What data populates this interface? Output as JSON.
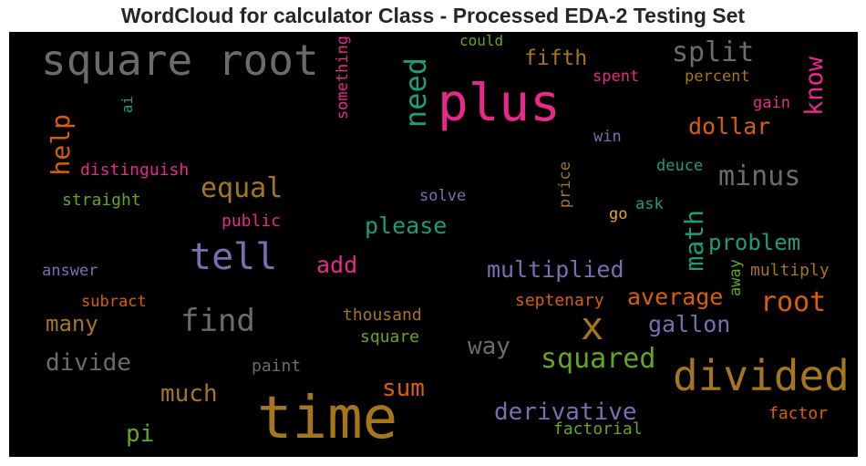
{
  "chart_data": {
    "type": "wordcloud",
    "title": "WordCloud for calculator Class - Processed EDA-2 Testing Set",
    "background": "#000000",
    "palette": {
      "gray": "#6b6b6b",
      "green": "#1b9e77",
      "olive": "#66a61e",
      "magenta": "#e7298a",
      "orange": "#d95f02",
      "purple": "#7570b3",
      "gold": "#a6761d",
      "yellow": "#e6ab02"
    },
    "words": [
      {
        "text": "square root",
        "color": "#6b6b6b",
        "orientation": "horizontal"
      },
      {
        "text": "plus",
        "color": "#e7298a",
        "orientation": "horizontal"
      },
      {
        "text": "need",
        "color": "#1b9e77",
        "orientation": "vertical"
      },
      {
        "text": "something",
        "color": "#e7298a",
        "orientation": "vertical"
      },
      {
        "text": "could",
        "color": "#66a61e",
        "orientation": "horizontal"
      },
      {
        "text": "fifth",
        "color": "#a6761d",
        "orientation": "horizontal"
      },
      {
        "text": "split",
        "color": "#6b6b6b",
        "orientation": "horizontal"
      },
      {
        "text": "know",
        "color": "#e7298a",
        "orientation": "vertical"
      },
      {
        "text": "spent",
        "color": "#e7298a",
        "orientation": "horizontal"
      },
      {
        "text": "percent",
        "color": "#a6761d",
        "orientation": "horizontal"
      },
      {
        "text": "gain",
        "color": "#e7298a",
        "orientation": "horizontal"
      },
      {
        "text": "ai",
        "color": "#1b9e77",
        "orientation": "vertical"
      },
      {
        "text": "help",
        "color": "#d95f02",
        "orientation": "vertical"
      },
      {
        "text": "dollar",
        "color": "#d95f02",
        "orientation": "horizontal"
      },
      {
        "text": "win",
        "color": "#7570b3",
        "orientation": "horizontal"
      },
      {
        "text": "distinguish",
        "color": "#e7298a",
        "orientation": "horizontal"
      },
      {
        "text": "deuce",
        "color": "#1b9e77",
        "orientation": "horizontal"
      },
      {
        "text": "minus",
        "color": "#6b6b6b",
        "orientation": "horizontal"
      },
      {
        "text": "price",
        "color": "#a6761d",
        "orientation": "vertical"
      },
      {
        "text": "equal",
        "color": "#a6761d",
        "orientation": "horizontal"
      },
      {
        "text": "straight",
        "color": "#66a61e",
        "orientation": "horizontal"
      },
      {
        "text": "solve",
        "color": "#7570b3",
        "orientation": "horizontal"
      },
      {
        "text": "ask",
        "color": "#1b9e77",
        "orientation": "horizontal"
      },
      {
        "text": "go",
        "color": "#e6ab02",
        "orientation": "horizontal"
      },
      {
        "text": "public",
        "color": "#e7298a",
        "orientation": "horizontal"
      },
      {
        "text": "please",
        "color": "#1b9e77",
        "orientation": "horizontal"
      },
      {
        "text": "math",
        "color": "#1b9e77",
        "orientation": "vertical"
      },
      {
        "text": "tell",
        "color": "#7570b3",
        "orientation": "horizontal"
      },
      {
        "text": "problem",
        "color": "#1b9e77",
        "orientation": "horizontal"
      },
      {
        "text": "add",
        "color": "#e7298a",
        "orientation": "horizontal"
      },
      {
        "text": "answer",
        "color": "#7570b3",
        "orientation": "horizontal"
      },
      {
        "text": "multiplied",
        "color": "#7570b3",
        "orientation": "horizontal"
      },
      {
        "text": "away",
        "color": "#66a61e",
        "orientation": "vertical"
      },
      {
        "text": "multiply",
        "color": "#a6761d",
        "orientation": "horizontal"
      },
      {
        "text": "subract",
        "color": "#d95f02",
        "orientation": "horizontal"
      },
      {
        "text": "average",
        "color": "#d95f02",
        "orientation": "horizontal"
      },
      {
        "text": "septenary",
        "color": "#d95f02",
        "orientation": "horizontal"
      },
      {
        "text": "root",
        "color": "#d95f02",
        "orientation": "horizontal"
      },
      {
        "text": "find",
        "color": "#6b6b6b",
        "orientation": "horizontal"
      },
      {
        "text": "thousand",
        "color": "#a6761d",
        "orientation": "horizontal"
      },
      {
        "text": "x",
        "color": "#a6761d",
        "orientation": "horizontal"
      },
      {
        "text": "many",
        "color": "#a6761d",
        "orientation": "horizontal"
      },
      {
        "text": "gallon",
        "color": "#7570b3",
        "orientation": "horizontal"
      },
      {
        "text": "square",
        "color": "#66a61e",
        "orientation": "horizontal"
      },
      {
        "text": "way",
        "color": "#6b6b6b",
        "orientation": "horizontal"
      },
      {
        "text": "divide",
        "color": "#6b6b6b",
        "orientation": "horizontal"
      },
      {
        "text": "squared",
        "color": "#66a61e",
        "orientation": "horizontal"
      },
      {
        "text": "paint",
        "color": "#6b6b6b",
        "orientation": "horizontal"
      },
      {
        "text": "divided",
        "color": "#a6761d",
        "orientation": "horizontal"
      },
      {
        "text": "much",
        "color": "#a6761d",
        "orientation": "horizontal"
      },
      {
        "text": "sum",
        "color": "#d95f02",
        "orientation": "horizontal"
      },
      {
        "text": "time",
        "color": "#a6761d",
        "orientation": "horizontal"
      },
      {
        "text": "derivative",
        "color": "#7570b3",
        "orientation": "horizontal"
      },
      {
        "text": "factor",
        "color": "#d95f02",
        "orientation": "horizontal"
      },
      {
        "text": "pi",
        "color": "#66a61e",
        "orientation": "horizontal"
      },
      {
        "text": "factorial",
        "color": "#66a61e",
        "orientation": "horizontal"
      }
    ]
  }
}
